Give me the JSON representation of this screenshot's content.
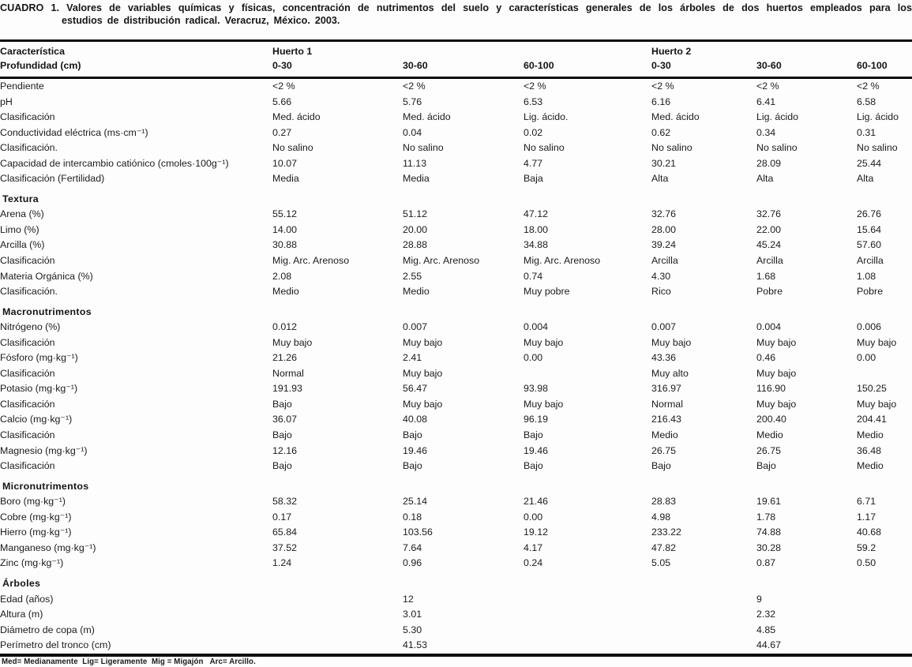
{
  "title": {
    "line1": "CUADRO 1. Valores de variables químicas y físicas, concentración de nutrimentos del suelo y características generales de los árboles de dos huertos empleados para los",
    "line2": "estudios de distribución radical. Veracruz, México. 2003."
  },
  "table": {
    "header": {
      "characteristic": "Característica",
      "depth_label": "Profundidad (cm)",
      "huerto1": "Huerto 1",
      "huerto2": "Huerto 2",
      "depths": [
        "0-30",
        "30-60",
        "60-100",
        "0-30",
        "30-60",
        "60-100"
      ]
    },
    "rows": [
      {
        "label": "Pendiente",
        "values": [
          "<2 %",
          "<2 %",
          "<2 %",
          "<2 %",
          "<2 %",
          "<2 %"
        ]
      },
      {
        "label": "pH",
        "values": [
          "5.66",
          "5.76",
          "6.53",
          "6.16",
          "6.41",
          "6.58"
        ]
      },
      {
        "label": "Clasificación",
        "values": [
          "Med. ácido",
          "Med. ácido",
          "Lig. ácido.",
          "Med. ácido",
          "Lig. ácido",
          "Lig. ácido"
        ]
      },
      {
        "label": "Conductividad eléctrica (ms·cm⁻¹)",
        "values": [
          "0.27",
          "0.04",
          "0.02",
          "0.62",
          "0.34",
          "0.31"
        ]
      },
      {
        "label": "Clasificación.",
        "values": [
          "No salino",
          "No salino",
          "No salino",
          "No salino",
          "No salino",
          "No salino"
        ]
      },
      {
        "label": "Capacidad de intercambio catiónico (cmoles·100g⁻¹)",
        "values": [
          "10.07",
          "11.13",
          "4.77",
          "30.21",
          "28.09",
          "25.44"
        ]
      },
      {
        "label": "Clasificación (Fertilidad)",
        "values": [
          "Media",
          "Media",
          "Baja",
          "Alta",
          "Alta",
          "Alta"
        ]
      },
      {
        "section": "Textura"
      },
      {
        "label": "Arena (%)",
        "values": [
          "55.12",
          "51.12",
          "47.12",
          "32.76",
          "32.76",
          "26.76"
        ]
      },
      {
        "label": "Limo (%)",
        "values": [
          "14.00",
          "20.00",
          "18.00",
          "28.00",
          "22.00",
          "15.64"
        ]
      },
      {
        "label": "Arcilla (%)",
        "values": [
          "30.88",
          "28.88",
          "34.88",
          "39.24",
          "45.24",
          "57.60"
        ]
      },
      {
        "label": "Clasificación",
        "values": [
          "Mig. Arc. Arenoso",
          "Mig. Arc. Arenoso",
          "Mig. Arc. Arenoso",
          "Arcilla",
          "Arcilla",
          "Arcilla"
        ]
      },
      {
        "label": "Materia Orgánica (%)",
        "values": [
          "2.08",
          "2.55",
          "0.74",
          "4.30",
          "1.68",
          "1.08"
        ]
      },
      {
        "label": "Clasificación.",
        "values": [
          "Medio",
          "Medio",
          "Muy pobre",
          "Rico",
          "Pobre",
          "Pobre"
        ]
      },
      {
        "section": "Macronutrimentos"
      },
      {
        "label": "Nitrógeno (%)",
        "values": [
          "0.012",
          "0.007",
          "0.004",
          "0.007",
          "0.004",
          "0.006"
        ]
      },
      {
        "label": "Clasificación",
        "values": [
          "Muy bajo",
          "Muy bajo",
          "Muy bajo",
          "Muy bajo",
          "Muy bajo",
          "Muy bajo"
        ]
      },
      {
        "label": "Fósforo (mg·kg⁻¹)",
        "values": [
          "21.26",
          "2.41",
          "0.00",
          "43.36",
          "0.46",
          "0.00"
        ]
      },
      {
        "label": "Clasificación",
        "values": [
          "Normal",
          "Muy bajo",
          "",
          "Muy alto",
          "Muy bajo",
          ""
        ]
      },
      {
        "label": "Potasio (mg·kg⁻¹)",
        "values": [
          "191.93",
          "56.47",
          "93.98",
          "316.97",
          "116.90",
          "150.25"
        ]
      },
      {
        "label": "Clasificación",
        "values": [
          "Bajo",
          "Muy bajo",
          "Muy bajo",
          "Normal",
          "Muy bajo",
          "Muy bajo"
        ]
      },
      {
        "label": "Calcio (mg·kg⁻¹)",
        "values": [
          "36.07",
          "40.08",
          "96.19",
          "216.43",
          "200.40",
          "204.41"
        ]
      },
      {
        "label": "Clasificación",
        "values": [
          "Bajo",
          "Bajo",
          "Bajo",
          "Medio",
          "Medio",
          "Medio"
        ]
      },
      {
        "label": "Magnesio (mg·kg⁻¹)",
        "values": [
          "12.16",
          "19.46",
          "19.46",
          "26.75",
          "26.75",
          "36.48"
        ]
      },
      {
        "label": "Clasificación",
        "values": [
          "Bajo",
          "Bajo",
          "Bajo",
          "Bajo",
          "Bajo",
          "Medio"
        ]
      },
      {
        "section": "Micronutrimentos"
      },
      {
        "label": "Boro (mg·kg⁻¹)",
        "values": [
          "58.32",
          "25.14",
          "21.46",
          "28.83",
          "19.61",
          "6.71"
        ]
      },
      {
        "label": "Cobre (mg·kg⁻¹)",
        "values": [
          "0.17",
          "0.18",
          "0.00",
          "4.98",
          "1.78",
          "1.17"
        ]
      },
      {
        "label": "Hierro (mg·kg⁻¹)",
        "values": [
          "65.84",
          "103.56",
          "19.12",
          "233.22",
          "74.88",
          "40.68"
        ]
      },
      {
        "label": "Manganeso (mg·kg⁻¹)",
        "values": [
          "37.52",
          "7.64",
          "4.17",
          "47.82",
          "30.28",
          "59.2"
        ]
      },
      {
        "label": "Zinc (mg·kg⁻¹)",
        "values": [
          "1.24",
          "0.96",
          "0.24",
          "5.05",
          "0.87",
          "0.50"
        ]
      },
      {
        "section": "Árboles"
      },
      {
        "label": "Edad (años)",
        "values": [
          "",
          "12",
          "",
          "",
          "9",
          ""
        ]
      },
      {
        "label": "Altura (m)",
        "values": [
          "",
          "3.01",
          "",
          "",
          "2.32",
          ""
        ]
      },
      {
        "label": "Diámetro de copa (m)",
        "values": [
          "",
          "5.30",
          "",
          "",
          "4.85",
          ""
        ]
      },
      {
        "label": "Perímetro del tronco (cm)",
        "values": [
          "",
          "41.53",
          "",
          "",
          "44.67",
          ""
        ]
      }
    ]
  },
  "footnote": "Med= Medianamente  Lig= Ligeramente  Mig = Migajón   Arc= Arcillo."
}
